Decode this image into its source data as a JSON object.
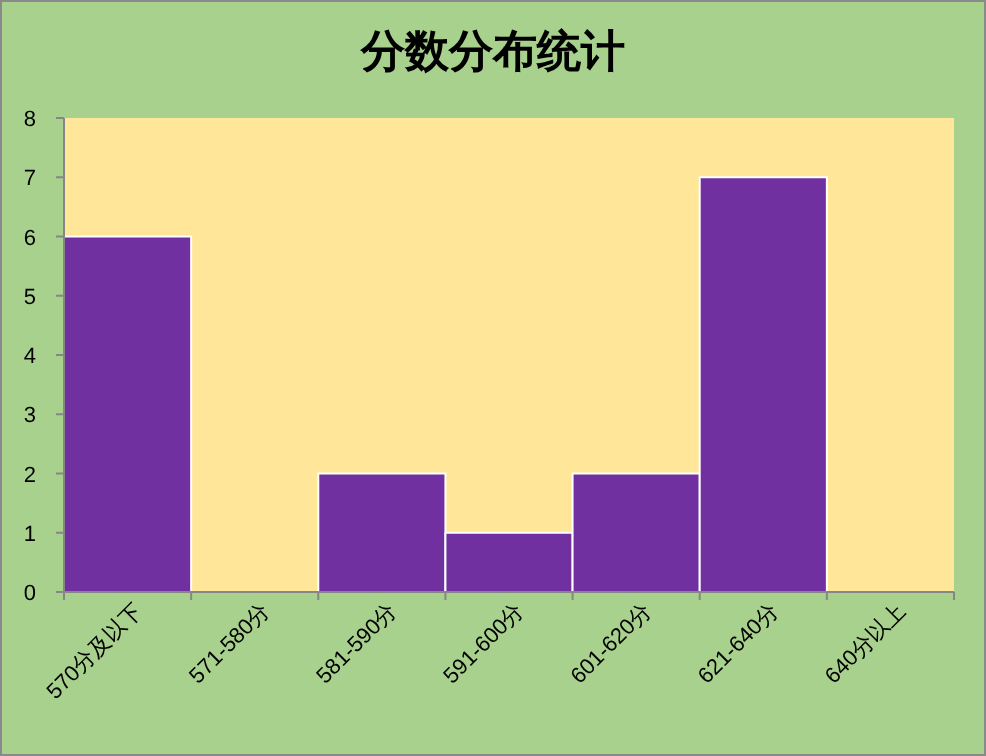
{
  "chart_data": {
    "type": "bar",
    "title": "分数分布统计",
    "categories": [
      "570分及以下",
      "571-580分",
      "581-590分",
      "591-600分",
      "601-620分",
      "621-640分",
      "640分以上"
    ],
    "values": [
      6,
      0,
      2,
      1,
      2,
      7,
      0
    ],
    "color": "#7030a0",
    "ylim": [
      0,
      8
    ],
    "yticks": [
      0,
      1,
      2,
      3,
      4,
      5,
      6,
      7,
      8
    ]
  }
}
